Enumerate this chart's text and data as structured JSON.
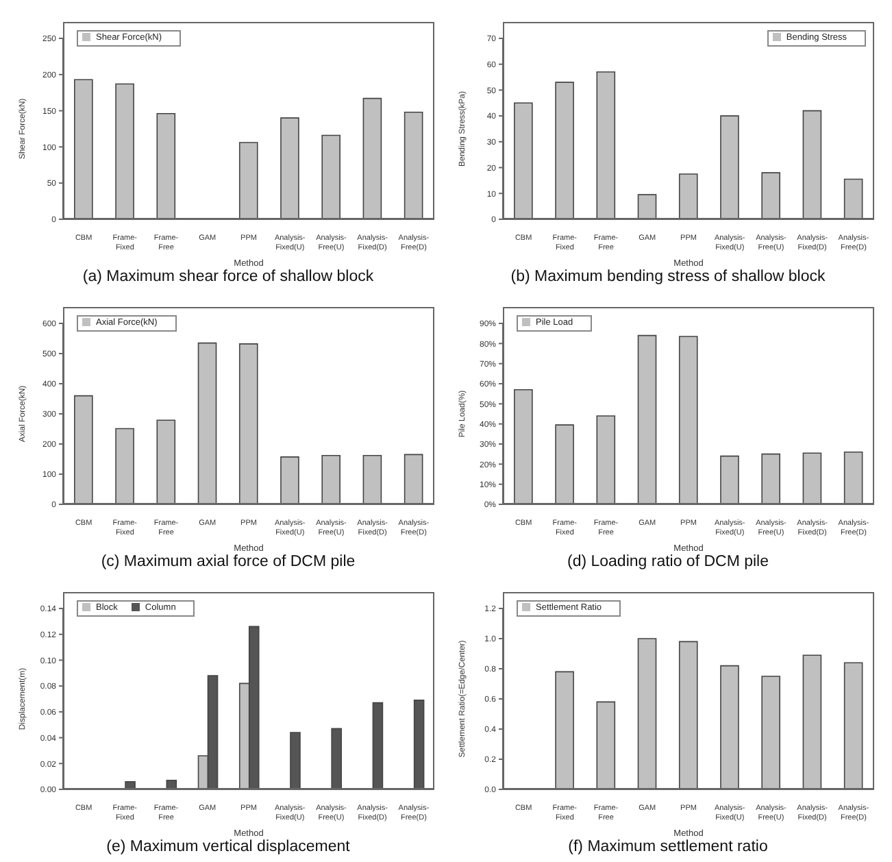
{
  "chart_data": [
    {
      "type": "bar",
      "title": "(a) Maximum shear force of shallow block",
      "xlabel": "Method",
      "ylabel": "Shear Force(kN)",
      "categories": [
        "CBM",
        "Frame-Fixed",
        "Frame-Free",
        "GAM",
        "PPM",
        "Analysis-Fixed(U)",
        "Analysis-Free(U)",
        "Analysis-Fixed(D)",
        "Analysis-Free(D)"
      ],
      "series": [
        {
          "name": "Shear Force(kN)",
          "color": "#c0c0c0",
          "values": [
            193,
            187,
            146,
            null,
            106,
            140,
            116,
            167,
            148
          ]
        }
      ],
      "ylim": [
        0,
        250
      ],
      "yticks": [
        0,
        50,
        100,
        150,
        200,
        250
      ],
      "legend": "top left"
    },
    {
      "type": "bar",
      "title": "(b) Maximum bending stress of shallow block",
      "xlabel": "Method",
      "ylabel": "Bending Stress(kPa)",
      "categories": [
        "CBM",
        "Frame-Fixed",
        "Frame-Free",
        "GAM",
        "PPM",
        "Analysis-Fixed(U)",
        "Analysis-Free(U)",
        "Analysis-Fixed(D)",
        "Analysis-Free(D)"
      ],
      "series": [
        {
          "name": "Bending Stress",
          "color": "#c0c0c0",
          "values": [
            45,
            53,
            57,
            9.5,
            17.5,
            40,
            18,
            42,
            15.5
          ]
        }
      ],
      "ylim": [
        0,
        70
      ],
      "yticks": [
        0,
        10,
        20,
        30,
        40,
        50,
        60,
        70
      ],
      "legend": "top right"
    },
    {
      "type": "bar",
      "title": "(c) Maximum axial force of DCM pile",
      "xlabel": "Method",
      "ylabel": "Axial Force(kN)",
      "categories": [
        "CBM",
        "Frame-Fixed",
        "Frame-Free",
        "GAM",
        "PPM",
        "Analysis-Fixed(U)",
        "Analysis-Free(U)",
        "Analysis-Fixed(D)",
        "Analysis-Free(D)"
      ],
      "series": [
        {
          "name": "Axial Force(kN)",
          "color": "#c0c0c0",
          "values": [
            360,
            251,
            279,
            535,
            532,
            157,
            162,
            162,
            165
          ]
        }
      ],
      "ylim": [
        0,
        600
      ],
      "yticks": [
        0,
        100,
        200,
        300,
        400,
        500,
        600
      ],
      "legend": "top left"
    },
    {
      "type": "bar",
      "title": "(d) Loading ratio of DCM pile",
      "xlabel": "Method",
      "ylabel": "Pile Load(%)",
      "categories": [
        "CBM",
        "Frame-Fixed",
        "Frame-Free",
        "GAM",
        "PPM",
        "Analysis-Fixed(U)",
        "Analysis-Free(U)",
        "Analysis-Fixed(D)",
        "Analysis-Free(D)"
      ],
      "series": [
        {
          "name": "Pile Load",
          "color": "#c0c0c0",
          "values": [
            57,
            39.5,
            44,
            84,
            83.5,
            24,
            25,
            25.5,
            26
          ]
        }
      ],
      "ylim": [
        0,
        90
      ],
      "yticks": [
        {
          "value": 0,
          "label": "0%"
        },
        {
          "value": 10,
          "label": "10%"
        },
        {
          "value": 20,
          "label": "20%"
        },
        {
          "value": 30,
          "label": "30%"
        },
        {
          "value": 40,
          "label": "40%"
        },
        {
          "value": 50,
          "label": "50%"
        },
        {
          "value": 60,
          "label": "60%"
        },
        {
          "value": 70,
          "label": "70%"
        },
        {
          "value": 80,
          "label": "80%"
        },
        {
          "value": 90,
          "label": "90%"
        }
      ],
      "legend": "top left"
    },
    {
      "type": "bar",
      "title": "(e) Maximum vertical displacement",
      "xlabel": "Method",
      "ylabel": "Displacement(m)",
      "categories": [
        "CBM",
        "Frame-Fixed",
        "Frame-Free",
        "GAM",
        "PPM",
        "Analysis-Fixed(U)",
        "Analysis-Free(U)",
        "Analysis-Fixed(D)",
        "Analysis-Free(D)"
      ],
      "series": [
        {
          "name": "Block",
          "color": "#c0c0c0",
          "values": [
            null,
            null,
            null,
            0.026,
            0.082,
            null,
            null,
            null,
            null
          ]
        },
        {
          "name": "Column",
          "color": "#555555",
          "values": [
            null,
            0.006,
            0.007,
            0.088,
            0.126,
            0.044,
            0.047,
            0.067,
            0.069
          ]
        }
      ],
      "ylim": [
        0,
        0.14
      ],
      "yticks": [
        {
          "value": 0,
          "label": "0.00"
        },
        {
          "value": 0.02,
          "label": "0.02"
        },
        {
          "value": 0.04,
          "label": "0.04"
        },
        {
          "value": 0.06,
          "label": "0.06"
        },
        {
          "value": 0.08,
          "label": "0.08"
        },
        {
          "value": 0.1,
          "label": "0.10"
        },
        {
          "value": 0.12,
          "label": "0.12"
        },
        {
          "value": 0.14,
          "label": "0.14"
        }
      ],
      "legend": "top left"
    },
    {
      "type": "bar",
      "title": "(f) Maximum settlement ratio",
      "xlabel": "Method",
      "ylabel": "Settlement Ratio(=Edge/Center)",
      "categories": [
        "CBM",
        "Frame-Fixed",
        "Frame-Free",
        "GAM",
        "PPM",
        "Analysis-Fixed(U)",
        "Analysis-Free(U)",
        "Analysis-Fixed(D)",
        "Analysis-Free(D)"
      ],
      "series": [
        {
          "name": "Settlement Ratio",
          "color": "#c0c0c0",
          "values": [
            null,
            0.78,
            0.58,
            1.0,
            0.98,
            0.82,
            0.75,
            0.89,
            0.84
          ]
        }
      ],
      "ylim": [
        0,
        1.2
      ],
      "yticks": [
        {
          "value": 0,
          "label": "0.0"
        },
        {
          "value": 0.2,
          "label": "0.2"
        },
        {
          "value": 0.4,
          "label": "0.4"
        },
        {
          "value": 0.6,
          "label": "0.6"
        },
        {
          "value": 0.8,
          "label": "0.8"
        },
        {
          "value": 1,
          "label": "1.0"
        },
        {
          "value": 1.2,
          "label": "1.2"
        }
      ],
      "legend": "top left"
    }
  ]
}
